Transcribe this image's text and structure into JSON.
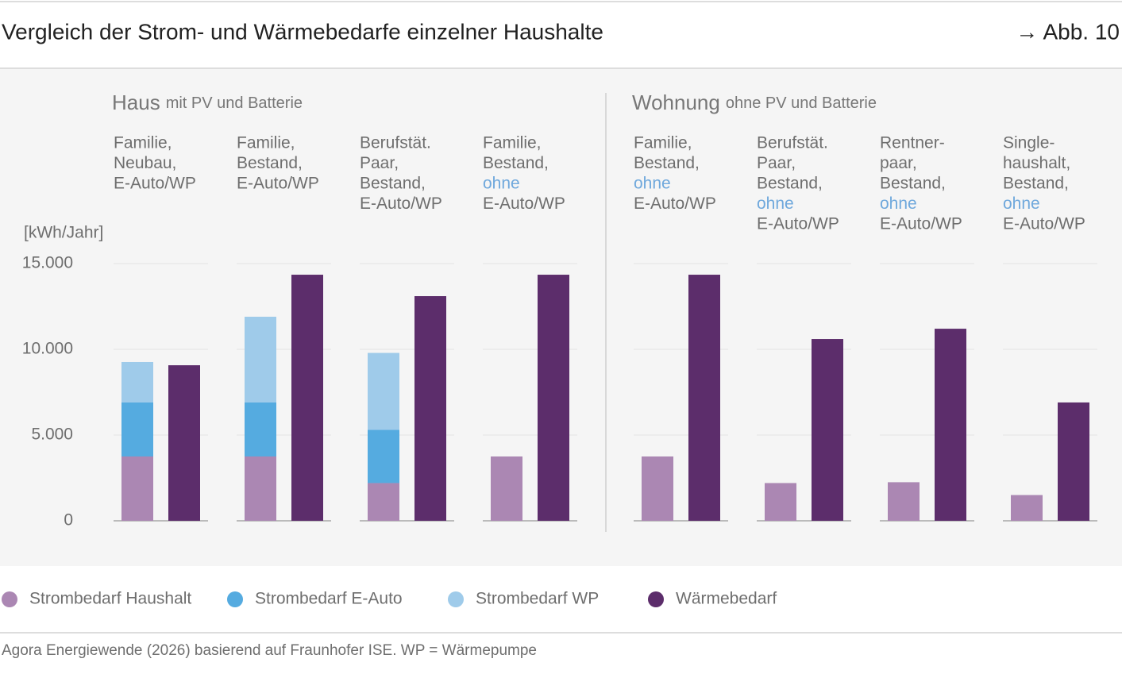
{
  "header": {
    "title": "Vergleich der Strom- und Wärmebedarfe einzelner Haushalte",
    "figure": "→ Abb. 10"
  },
  "chart_data": {
    "type": "grouped-stacked-bar",
    "y_label": "[kWh/Jahr]",
    "ylim": [
      0,
      15000
    ],
    "yticks": [
      0,
      {
        "value": 5000,
        "label": "5.000"
      },
      {
        "value": 10000,
        "label": "10.000"
      },
      {
        "value": 15000,
        "label": "15.000"
      }
    ],
    "grid": true,
    "series": [
      {
        "name": "Strombedarf Haushalt",
        "color": "#ab87b3",
        "stack": "strom"
      },
      {
        "name": "Strombedarf E-Auto",
        "color": "#55abe0",
        "stack": "strom"
      },
      {
        "name": "Strombedarf WP",
        "color": "#9fcbea",
        "stack": "strom"
      },
      {
        "name": "Wärmebedarf",
        "color": "#5c2d6b",
        "stack": "waerme"
      }
    ],
    "groups": [
      {
        "title": "Haus",
        "subtitle": "mit PV und Batterie",
        "categories": [
          [
            "Familie,",
            "Neubau,",
            "E-Auto/WP"
          ],
          [
            "Familie,",
            "Bestand,",
            "E-Auto/WP"
          ],
          [
            "Berufstät.",
            "Paar,",
            "Bestand,",
            "E-Auto/WP"
          ],
          [
            "Familie,",
            "Bestand,",
            {
              "text": "ohne",
              "color": "#6fa8dc"
            },
            "E-Auto/WP"
          ]
        ],
        "values": [
          [
            3750,
            3750,
            2200,
            3750
          ],
          [
            3150,
            3150,
            3100,
            null
          ],
          [
            2360,
            5000,
            4490,
            null
          ],
          [
            9070,
            14350,
            13100,
            14350
          ]
        ]
      },
      {
        "title": "Wohnung",
        "subtitle": "ohne PV und Batterie",
        "categories": [
          [
            "Familie,",
            "Bestand,",
            {
              "text": "ohne",
              "color": "#6fa8dc"
            },
            "E-Auto/WP"
          ],
          [
            "Berufstät.",
            "Paar,",
            "Bestand,",
            {
              "text": "ohne",
              "color": "#6fa8dc"
            },
            "E-Auto/WP"
          ],
          [
            "Rentner-",
            "paar,",
            "Bestand,",
            {
              "text": "ohne",
              "color": "#6fa8dc"
            },
            "E-Auto/WP"
          ],
          [
            "Single-",
            "haushalt,",
            "Bestand,",
            {
              "text": "ohne",
              "color": "#6fa8dc"
            },
            "E-Auto/WP"
          ]
        ],
        "values": [
          [
            3750,
            2200,
            2250,
            1500
          ],
          [
            null,
            null,
            null,
            null
          ],
          [
            null,
            null,
            null,
            null
          ],
          [
            14350,
            10600,
            11200,
            6900
          ]
        ]
      }
    ]
  },
  "source": "Agora Energiewende (2026) basierend auf Fraunhofer ISE. WP = Wärmepumpe"
}
